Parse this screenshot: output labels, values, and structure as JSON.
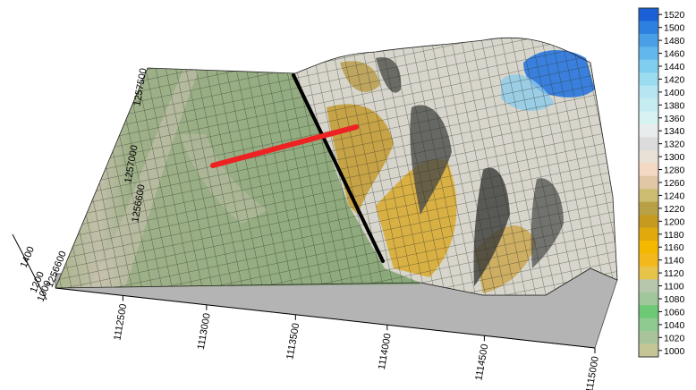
{
  "chart_data": {
    "type": "surface3d",
    "title": "",
    "x_ticks": [
      "1112500",
      "1113000",
      "1113500",
      "1114000",
      "1114500",
      "1115000"
    ],
    "y_ticks": [
      "1256600",
      "1257000",
      "1257500"
    ],
    "z_label": "1400",
    "z_tick_labels": [
      "1200",
      "1000"
    ],
    "z_corner_label": "1256600",
    "colorbar": {
      "levels": [
        1000,
        1020,
        1040,
        1060,
        1080,
        1100,
        1120,
        1140,
        1160,
        1180,
        1200,
        1220,
        1240,
        1260,
        1280,
        1300,
        1320,
        1340,
        1360,
        1380,
        1400,
        1420,
        1440,
        1460,
        1480,
        1500,
        1520
      ],
      "colors": [
        "#c6c596",
        "#a9c49d",
        "#8fcb91",
        "#6ec975",
        "#a0c79b",
        "#b7c7ac",
        "#e8c34a",
        "#f3b81c",
        "#f5b800",
        "#e0aa0c",
        "#c59a1f",
        "#b8a047",
        "#cbbd72",
        "#e2c7a5",
        "#f3d8c4",
        "#eae1d6",
        "#dcdcdc",
        "#e9ecec",
        "#d6f2f1",
        "#c5edf1",
        "#b7e6f2",
        "#9bdcf0",
        "#7fcdef",
        "#62b8ec",
        "#499fe6",
        "#2d80df",
        "#1a5fd6"
      ]
    },
    "annotations": [
      {
        "name": "red-profile-line",
        "color": "#ee2222"
      },
      {
        "name": "black-profile-line",
        "color": "#000000"
      }
    ]
  }
}
